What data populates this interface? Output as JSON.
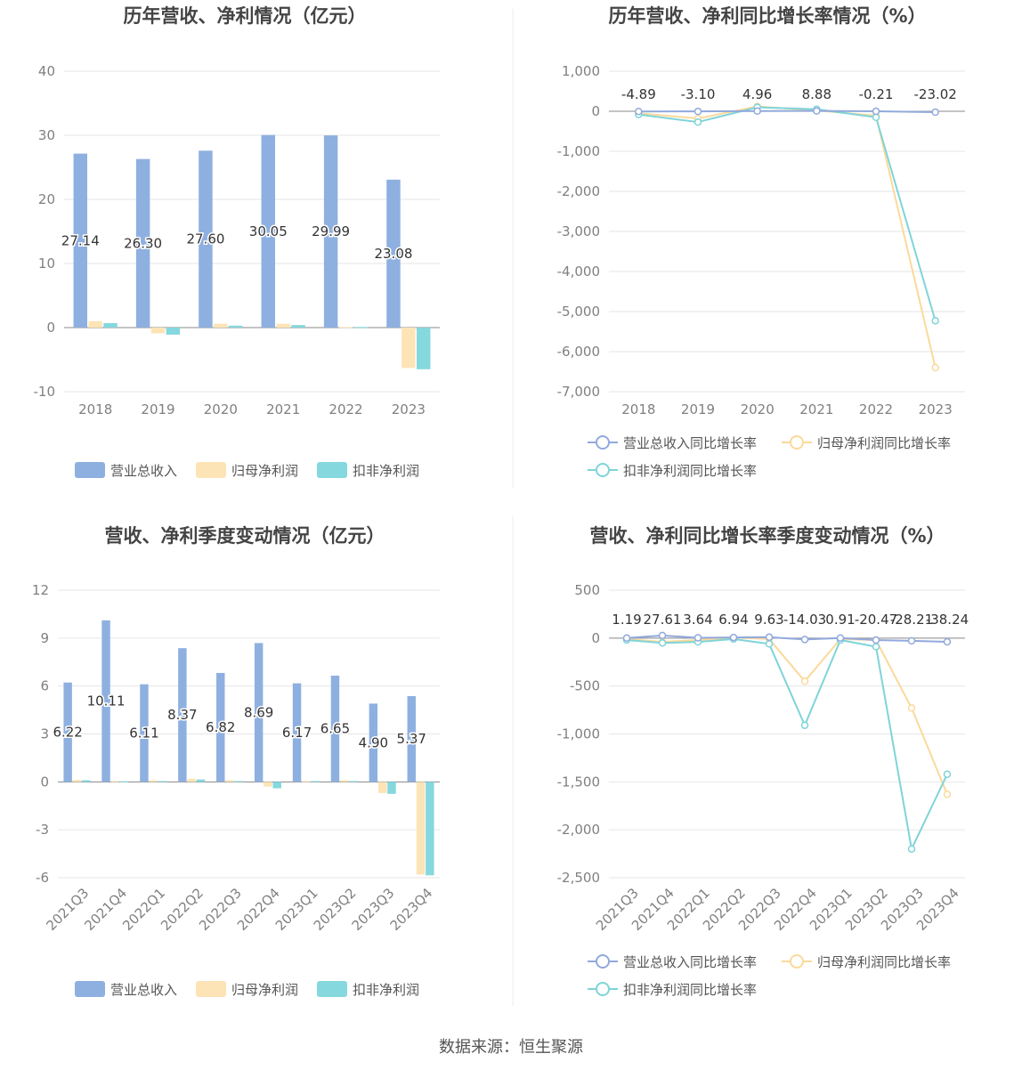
{
  "footer": "数据来源：恒生聚源",
  "colors": {
    "revenue": "#8eb0e0",
    "net_profit": "#fde4b6",
    "deducted_profit": "#84d8de",
    "revenue_line": "#91a9dc",
    "net_line": "#fbd99a",
    "deducted_line": "#7fd4d8"
  },
  "chart_data": [
    {
      "id": "annual-values",
      "type": "bar",
      "title": "历年营收、净利情况（亿元）",
      "categories": [
        "2018",
        "2019",
        "2020",
        "2021",
        "2022",
        "2023"
      ],
      "ylim": [
        -10,
        40
      ],
      "yticks": [
        -10,
        0,
        10,
        20,
        30,
        40
      ],
      "ytick_labels": [
        "-10",
        "0",
        "10",
        "20",
        "30",
        "40"
      ],
      "series": [
        {
          "name": "营业总收入",
          "values": [
            27.14,
            26.3,
            27.6,
            30.05,
            29.99,
            23.08
          ],
          "labels": [
            "27.14",
            "26.30",
            "27.60",
            "30.05",
            "29.99",
            "23.08"
          ]
        },
        {
          "name": "归母净利润",
          "values": [
            1.0,
            -0.9,
            0.6,
            0.6,
            0.1,
            -6.3
          ]
        },
        {
          "name": "扣非净利润",
          "values": [
            0.7,
            -1.1,
            0.3,
            0.4,
            0.1,
            -6.5
          ]
        }
      ],
      "legend_position": "bottom"
    },
    {
      "id": "annual-growth",
      "type": "line",
      "title": "历年营收、净利同比增长率情况（%）",
      "categories": [
        "2018",
        "2019",
        "2020",
        "2021",
        "2022",
        "2023"
      ],
      "ylim": [
        -7000,
        1000
      ],
      "yticks": [
        -7000,
        -6000,
        -5000,
        -4000,
        -3000,
        -2000,
        -1000,
        0,
        1000
      ],
      "ytick_labels": [
        "-7,000",
        "-6,000",
        "-5,000",
        "-4,000",
        "-3,000",
        "-2,000",
        "-1,000",
        "0",
        "1,000"
      ],
      "series": [
        {
          "name": "营业总收入同比增长率",
          "values": [
            -4.89,
            -3.1,
            4.96,
            8.88,
            -0.21,
            -23.02
          ],
          "labels": [
            "-4.89",
            "-3.10",
            "4.96",
            "8.88",
            "-0.21",
            "-23.02"
          ]
        },
        {
          "name": "归母净利润同比增长率",
          "values": [
            -50,
            -180,
            120,
            20,
            -110,
            -6400
          ]
        },
        {
          "name": "扣非净利润同比增长率",
          "values": [
            -80,
            -270,
            100,
            50,
            -150,
            -5230
          ]
        }
      ],
      "legend_position": "bottom"
    },
    {
      "id": "quarterly-values",
      "type": "bar",
      "title": "营收、净利季度变动情况（亿元）",
      "categories": [
        "2021Q3",
        "2021Q4",
        "2022Q1",
        "2022Q2",
        "2022Q3",
        "2022Q4",
        "2023Q1",
        "2023Q2",
        "2023Q3",
        "2023Q4"
      ],
      "ylim": [
        -6,
        12
      ],
      "yticks": [
        -6,
        -3,
        0,
        3,
        6,
        9,
        12
      ],
      "ytick_labels": [
        "-6",
        "-3",
        "0",
        "3",
        "6",
        "9",
        "12"
      ],
      "series": [
        {
          "name": "营业总收入",
          "values": [
            6.22,
            10.11,
            6.11,
            8.37,
            6.82,
            8.69,
            6.17,
            6.65,
            4.9,
            5.37
          ],
          "labels": [
            "6.22",
            "10.11",
            "6.11",
            "8.37",
            "6.82",
            "8.69",
            "6.17",
            "6.65",
            "4.90",
            "5.37"
          ]
        },
        {
          "name": "归母净利润",
          "values": [
            0.12,
            0.05,
            0.1,
            0.2,
            0.1,
            -0.3,
            0.05,
            0.1,
            -0.7,
            -5.8
          ]
        },
        {
          "name": "扣非净利润",
          "values": [
            0.1,
            0.03,
            0.05,
            0.15,
            0.05,
            -0.4,
            0.05,
            0.05,
            -0.75,
            -5.85
          ]
        }
      ],
      "legend_position": "bottom"
    },
    {
      "id": "quarterly-growth",
      "type": "line",
      "title": "营收、净利同比增长率季度变动情况（%）",
      "categories": [
        "2021Q3",
        "2021Q4",
        "2022Q1",
        "2022Q2",
        "2022Q3",
        "2022Q4",
        "2023Q1",
        "2023Q2",
        "2023Q3",
        "2023Q4"
      ],
      "ylim": [
        -2500,
        500
      ],
      "yticks": [
        -2500,
        -2000,
        -1500,
        -1000,
        -500,
        0,
        500
      ],
      "ytick_labels": [
        "-2,500",
        "-2,000",
        "-1,500",
        "-1,000",
        "-500",
        "0",
        "500"
      ],
      "series": [
        {
          "name": "营业总收入同比增长率",
          "values": [
            1.19,
            27.61,
            3.64,
            6.94,
            9.63,
            -14.03,
            0.91,
            -20.47,
            -28.21,
            -38.24
          ],
          "labels": [
            "1.19",
            "27.61",
            "3.64",
            "6.94",
            "9.63",
            "-14.03",
            "0.91",
            "-20.47",
            "-28.21",
            "-38.24"
          ]
        },
        {
          "name": "归母净利润同比增长率",
          "values": [
            -10,
            -40,
            -20,
            5,
            -10,
            -450,
            -10,
            -20,
            -730,
            -1630
          ]
        },
        {
          "name": "扣非净利润同比增长率",
          "values": [
            -20,
            -50,
            -40,
            -10,
            -60,
            -910,
            -20,
            -90,
            -2200,
            -1420
          ]
        }
      ],
      "legend_position": "bottom"
    }
  ]
}
